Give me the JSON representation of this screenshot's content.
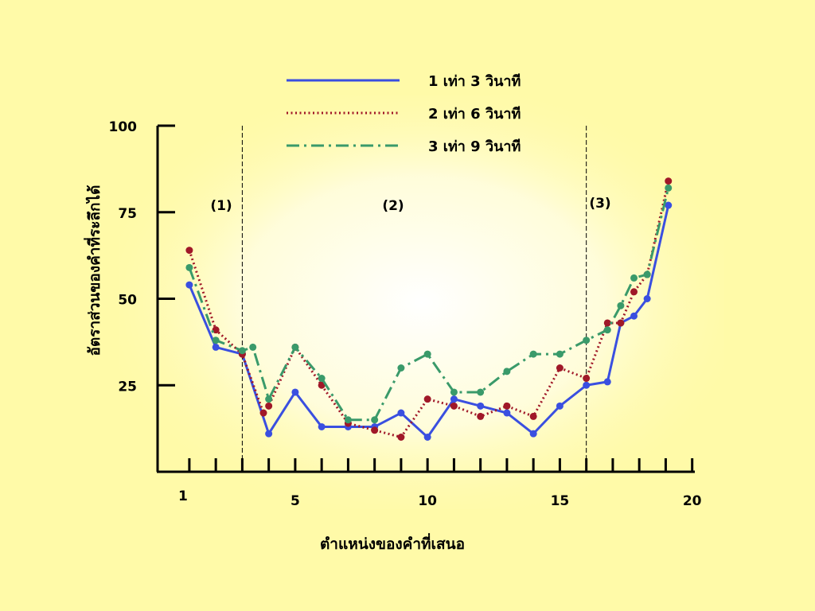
{
  "chart_data": {
    "type": "line",
    "xlabel": "ตำแหน่งของคำที่เสนอ",
    "ylabel": "อัตราส่วนของคำที่ระลึกได้",
    "ylim": [
      0,
      100
    ],
    "xlim": [
      0.3,
      20.6
    ],
    "yticks": [
      "25",
      "50",
      "75",
      "100"
    ],
    "xtick_labels": [
      "1",
      "5",
      "10",
      "15",
      "20"
    ],
    "regions": [
      {
        "label": "(1)",
        "boundary_after": 3.5
      },
      {
        "label": "(2)"
      },
      {
        "label": "(3)",
        "boundary_before": 16.5
      }
    ],
    "legend_position": "top",
    "grid": false,
    "series": [
      {
        "name": "1 เท่า 3 วินาที",
        "color": "#3a4fe0",
        "style": "solid",
        "x": [
          1.5,
          2.5,
          3.5,
          4.5,
          5.5,
          6.5,
          7.5,
          8.5,
          9.5,
          10.5,
          11.5,
          12.5,
          13.5,
          14.5,
          15.5,
          16.5,
          17.3,
          17.8,
          18.3,
          18.8,
          19.6
        ],
        "y": [
          54,
          36,
          34,
          11,
          23,
          13,
          13,
          13,
          17,
          10,
          21,
          19,
          17,
          11,
          19,
          25,
          26,
          43,
          45,
          50,
          77
        ]
      },
      {
        "name": "2 เท่า 6 วินาที",
        "color": "#a01828",
        "style": "dotted",
        "x": [
          1.5,
          2.5,
          3.5,
          4.3,
          4.5,
          5.5,
          6.5,
          7.5,
          8.5,
          9.5,
          10.5,
          11.5,
          12.5,
          13.5,
          14.5,
          15.5,
          16.5,
          17.3,
          17.8,
          18.3,
          18.8,
          19.6
        ],
        "y": [
          64,
          41,
          34,
          17,
          19,
          36,
          25,
          14,
          12,
          10,
          21,
          19,
          16,
          19,
          16,
          30,
          27,
          43,
          43,
          52,
          57,
          84
        ]
      },
      {
        "name": "3 เท่า 9 วินาที",
        "color": "#3a9a6a",
        "style": "dashdot",
        "x": [
          1.5,
          2.5,
          3.5,
          3.9,
          4.5,
          5.5,
          6.5,
          7.5,
          8.5,
          9.5,
          10.5,
          11.5,
          12.5,
          13.5,
          14.5,
          15.5,
          16.5,
          17.3,
          17.8,
          18.3,
          18.8,
          19.6
        ],
        "y": [
          59,
          38,
          35,
          36,
          21,
          36,
          27,
          15,
          15,
          30,
          34,
          23,
          23,
          29,
          34,
          34,
          38,
          41,
          48,
          56,
          57,
          82
        ]
      }
    ]
  }
}
